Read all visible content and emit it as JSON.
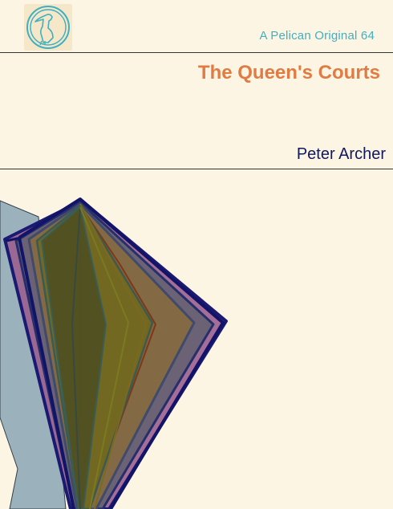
{
  "cover": {
    "series_label": "A Pelican Original 64",
    "title": "The Queen's Courts",
    "author": "Peter Archer"
  },
  "logo": {
    "icon": "pelican-icon"
  },
  "colors": {
    "background": "#fdf5e4",
    "series": "#3fb0c2",
    "title": "#e07b43",
    "author": "#101860"
  }
}
